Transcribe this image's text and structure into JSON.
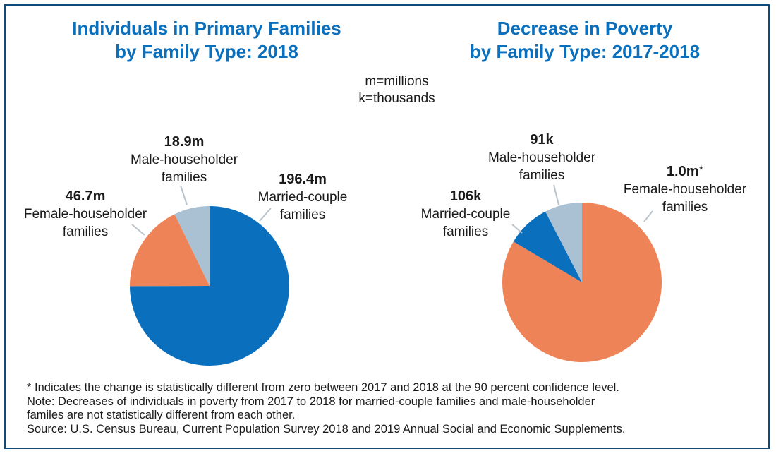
{
  "units_note": [
    "m=millions",
    "k=thousands"
  ],
  "chart_data": [
    {
      "type": "pie",
      "title": [
        "Individuals in Primary Families",
        "by Family Type: 2018"
      ],
      "slices": [
        {
          "value_label": "196.4m",
          "label": [
            "Married-couple",
            "families"
          ],
          "value": 196.4,
          "color": "#0a6fbd"
        },
        {
          "value_label": "46.7m",
          "label": [
            "Female-householder",
            "families"
          ],
          "value": 46.7,
          "color": "#ef8358"
        },
        {
          "value_label": "18.9m",
          "label": [
            "Male-householder",
            "families"
          ],
          "value": 18.9,
          "color": "#a9c1d3"
        }
      ]
    },
    {
      "type": "pie",
      "title": [
        "Decrease in Poverty",
        "by Family Type: 2017-2018"
      ],
      "slices": [
        {
          "value_label": "1.0m",
          "asterisk": "*",
          "label": [
            "Female-householder",
            "families"
          ],
          "value": 1000,
          "color": "#ef8358"
        },
        {
          "value_label": "106k",
          "label": [
            "Married-couple",
            "families"
          ],
          "value": 106,
          "color": "#0a6fbd"
        },
        {
          "value_label": "91k",
          "label": [
            "Male-householder",
            "families"
          ],
          "value": 91,
          "color": "#a9c1d3"
        }
      ]
    }
  ],
  "notes": [
    "* Indicates the change is statistically different from zero between 2017 and 2018 at the 90 percent confidence level.",
    "Note: Decreases of individuals in poverty from 2017 to 2018 for married-couple families and male-householder",
    "familes are not statistically different from each other.",
    "Source: U.S. Census Bureau, Current Population Survey 2018 and 2019 Annual Social and Economic Supplements."
  ]
}
